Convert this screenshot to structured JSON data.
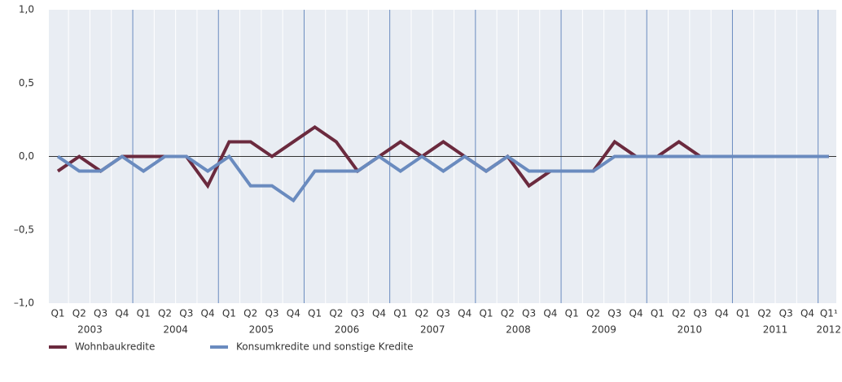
{
  "chart_data": {
    "type": "line",
    "categories": [
      "Q1",
      "Q2",
      "Q3",
      "Q4",
      "Q1",
      "Q2",
      "Q3",
      "Q4",
      "Q1",
      "Q2",
      "Q3",
      "Q4",
      "Q1",
      "Q2",
      "Q3",
      "Q4",
      "Q1",
      "Q2",
      "Q3",
      "Q4",
      "Q1",
      "Q2",
      "Q3",
      "Q4",
      "Q1",
      "Q2",
      "Q3",
      "Q4",
      "Q1",
      "Q2",
      "Q3",
      "Q4",
      "Q1",
      "Q2",
      "Q3",
      "Q4",
      "Q1¹"
    ],
    "years": [
      "2003",
      "2004",
      "2005",
      "2006",
      "2007",
      "2008",
      "2009",
      "2010",
      "2011",
      "2012"
    ],
    "series": [
      {
        "name": "Wohnbaukredite",
        "color": "#6b2a3e",
        "values": [
          -0.1,
          0,
          -0.1,
          0,
          0,
          0,
          0,
          -0.2,
          0.1,
          0.1,
          0,
          0.1,
          0.2,
          0.1,
          -0.1,
          0,
          0.1,
          0,
          0.1,
          0,
          -0.1,
          0,
          -0.2,
          -0.1,
          -0.1,
          -0.1,
          0.1,
          0,
          0,
          0.1,
          0,
          0,
          0,
          0,
          0,
          0,
          0
        ]
      },
      {
        "name": "Konsumkredite und sonstige Kredite",
        "color": "#6a8bbf",
        "values": [
          0,
          -0.1,
          -0.1,
          0,
          -0.1,
          0,
          0,
          -0.1,
          0,
          -0.2,
          -0.2,
          -0.3,
          -0.1,
          -0.1,
          -0.1,
          0,
          -0.1,
          0,
          -0.1,
          0,
          -0.1,
          0,
          -0.1,
          -0.1,
          -0.1,
          -0.1,
          0,
          0,
          0,
          0,
          0,
          0,
          0,
          0,
          0,
          0,
          0
        ]
      }
    ],
    "ylim": [
      -1,
      1
    ],
    "yticks": [
      {
        "value": -1,
        "label": "–1,0"
      },
      {
        "value": -0.5,
        "label": "–0,5"
      },
      {
        "value": 0,
        "label": "0,0"
      },
      {
        "value": 0.5,
        "label": "0,5"
      },
      {
        "value": 1,
        "label": "1,0"
      }
    ],
    "legend": "bottom-left"
  }
}
